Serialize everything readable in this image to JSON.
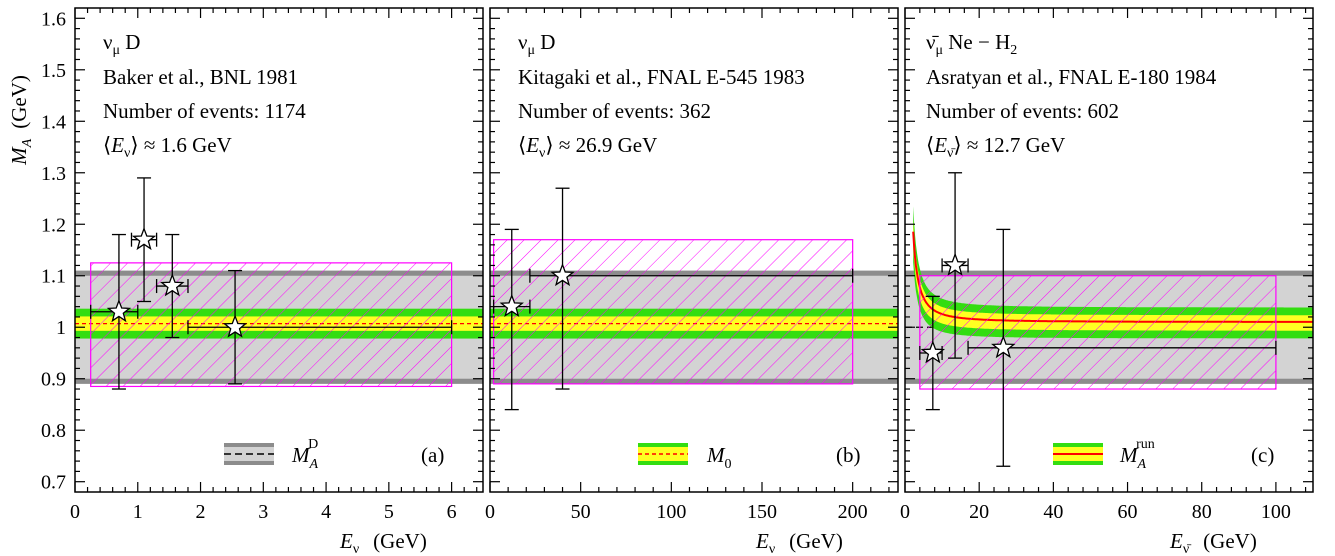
{
  "chart_data": {
    "type": "scatter",
    "y_axis": {
      "label_main": "M",
      "label_sub": "A",
      "unit": "(GeV)",
      "ylim": [
        0.68,
        1.62
      ],
      "ticks": [
        0.7,
        0.8,
        0.9,
        1.0,
        1.1,
        1.2,
        1.3,
        1.4,
        1.5,
        1.6
      ],
      "tick_labels": [
        "0.7",
        "0.8",
        "0.9",
        "1",
        "1.1",
        "1.2",
        "1.3",
        "1.4",
        "1.5",
        "1.6"
      ]
    },
    "bands": {
      "MA_D": {
        "center": 1.0,
        "inner": [
          0.9,
          1.1
        ],
        "outer": [
          0.89,
          1.11
        ]
      },
      "M0": {
        "center": 1.007,
        "inner": [
          0.993,
          1.021
        ],
        "outer": [
          0.978,
          1.036
        ]
      },
      "colors": {
        "gray_outer": "#8c8c8c",
        "gray_inner": "#d3d3d3",
        "green": "#33dd11",
        "yellow": "#ffff22",
        "red": "#ff0000",
        "magenta": "#ff00ff"
      }
    },
    "panels": [
      {
        "id": "a",
        "panel_label": "(a)",
        "reaction": "ν",
        "reaction_sub": "μ",
        "reaction_rest": " D",
        "reference": "Baker et al., BNL 1981",
        "events": "Number of events: 1174",
        "mean_energy_prefix": "⟨",
        "mean_energy_sym": "E",
        "mean_energy_sub": "ν",
        "mean_energy_value": "⟩ ≈ 1.6 GeV",
        "legend_sym": "M",
        "legend_sub": "A",
        "legend_sup": "D",
        "x_axis": {
          "label_sym": "E",
          "label_sub": "ν",
          "unit": "(GeV)",
          "xlim": [
            0,
            6.5
          ],
          "ticks": [
            0,
            1,
            2,
            3,
            4,
            5,
            6
          ],
          "tick_labels": [
            "0",
            "1",
            "2",
            "3",
            "4",
            "5",
            "6"
          ]
        },
        "average_box": {
          "x": [
            0.25,
            6.0
          ],
          "y": [
            0.885,
            1.125
          ],
          "value": 1.0
        },
        "points": [
          {
            "x": 0.7,
            "xerr": [
              0.25,
              1.0
            ],
            "y": 1.03,
            "yerr": [
              0.88,
              1.18
            ]
          },
          {
            "x": 1.1,
            "xerr": [
              0.9,
              1.3
            ],
            "y": 1.17,
            "yerr": [
              1.05,
              1.29
            ]
          },
          {
            "x": 1.55,
            "xerr": [
              1.3,
              1.8
            ],
            "y": 1.08,
            "yerr": [
              0.98,
              1.18
            ]
          },
          {
            "x": 2.55,
            "xerr": [
              1.8,
              6.0
            ],
            "y": 1.0,
            "yerr": [
              0.89,
              1.11
            ]
          }
        ]
      },
      {
        "id": "b",
        "panel_label": "(b)",
        "reaction": "ν",
        "reaction_sub": "μ",
        "reaction_rest": " D",
        "reference": "Kitagaki et al., FNAL E-545 1983",
        "events": "Number of events: 362",
        "mean_energy_prefix": "⟨",
        "mean_energy_sym": "E",
        "mean_energy_sub": "ν",
        "mean_energy_value": "⟩ ≈ 26.9 GeV",
        "legend_sym": "M",
        "legend_sub": "0",
        "legend_sup": "",
        "x_axis": {
          "label_sym": "E",
          "label_sub": "ν",
          "unit": "(GeV)",
          "xlim": [
            0,
            225
          ],
          "ticks": [
            0,
            50,
            100,
            150,
            200
          ],
          "tick_labels": [
            "0",
            "50",
            "100",
            "150",
            "200"
          ]
        },
        "average_box": {
          "x": [
            2,
            200
          ],
          "y": [
            0.89,
            1.17
          ],
          "value": 1.0
        },
        "points": [
          {
            "x": 12,
            "xerr": [
              2,
              22
            ],
            "y": 1.04,
            "yerr": [
              0.84,
              1.19
            ]
          },
          {
            "x": 40,
            "xerr": [
              22,
              200
            ],
            "y": 1.1,
            "yerr": [
              0.88,
              1.27
            ]
          }
        ]
      },
      {
        "id": "c",
        "panel_label": "(c)",
        "reaction": "ν̄",
        "reaction_sub": "μ",
        "reaction_rest": " Ne − H",
        "reaction_rest_sub": "2",
        "reference": "Asratyan et al., FNAL E-180 1984",
        "events": "Number of events: 602",
        "mean_energy_prefix": "⟨",
        "mean_energy_sym": "E",
        "mean_energy_sub": "ν̄",
        "mean_energy_value": "⟩ ≈ 12.7 GeV",
        "legend_sym": "M",
        "legend_sub": "A",
        "legend_sup": "run",
        "x_axis": {
          "label_sym": "E",
          "label_sub": "ν̄",
          "unit": "(GeV)",
          "xlim": [
            0,
            110
          ],
          "ticks": [
            0,
            20,
            40,
            60,
            80,
            100
          ],
          "tick_labels": [
            "0",
            "20",
            "40",
            "60",
            "80",
            "100"
          ]
        },
        "average_box": {
          "x": [
            4,
            100
          ],
          "y": [
            0.88,
            1.1
          ],
          "value": 1.0
        },
        "running_curve": {
          "asymptote": 1.01,
          "amp": 0.62,
          "e0": 1.0,
          "power": 1.6
        },
        "points": [
          {
            "x": 7.5,
            "xerr": [
              4,
              10
            ],
            "y": 0.95,
            "yerr": [
              0.84,
              1.06
            ]
          },
          {
            "x": 13.5,
            "xerr": [
              10,
              17
            ],
            "y": 1.12,
            "yerr": [
              0.94,
              1.3
            ]
          },
          {
            "x": 26.5,
            "xerr": [
              17,
              100
            ],
            "y": 0.96,
            "yerr": [
              0.73,
              1.19
            ]
          }
        ]
      }
    ]
  }
}
